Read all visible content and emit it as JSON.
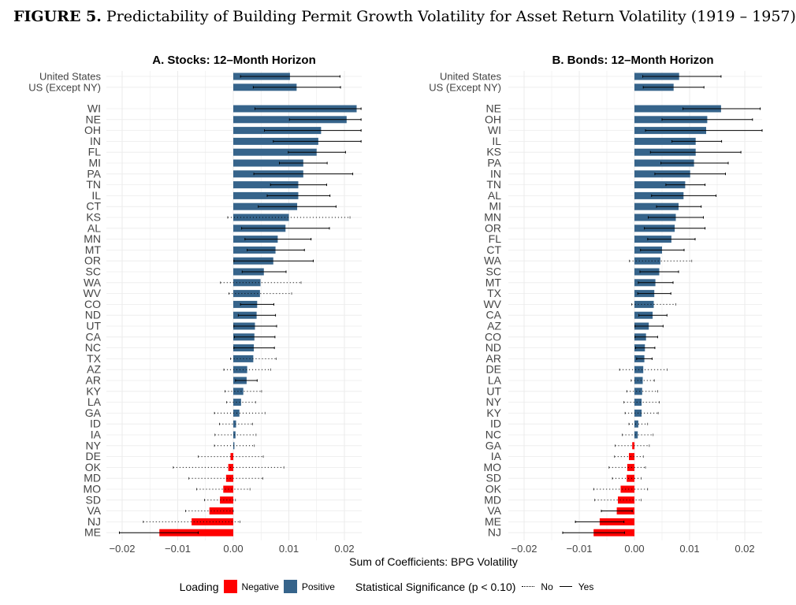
{
  "figure": {
    "label": "FIGURE 5.",
    "title": "Predictability of Building Permit Growth Volatility for Asset Return Volatility (1919 – 1957)"
  },
  "colors": {
    "negative": "#ff0000",
    "positive": "#36648b",
    "grid": "#ebebeb",
    "whisker": "#000000"
  },
  "chart_data": [
    {
      "type": "bar",
      "orientation": "horizontal",
      "title": "A. Stocks: 12–Month Horizon",
      "xlabel": "Sum of Coefficients: BPG Volatility",
      "xlim": [
        -0.023,
        0.023
      ],
      "xticks": [
        -0.02,
        -0.01,
        0.0,
        0.01,
        0.02
      ],
      "xtick_labels": [
        "−0.02",
        "−0.01",
        "0.00",
        "0.01",
        "0.02"
      ],
      "aggregates": [
        {
          "label": "United States",
          "value": 0.0102,
          "low": 0.0013,
          "high": 0.0192,
          "sig": true
        },
        {
          "label": "US (Except NY)",
          "value": 0.0114,
          "low": 0.0036,
          "high": 0.0193,
          "sig": true
        }
      ],
      "states": [
        {
          "label": "WI",
          "value": 0.0222,
          "low": 0.0039,
          "high": 0.023,
          "sig": true
        },
        {
          "label": "NE",
          "value": 0.0204,
          "low": 0.0101,
          "high": 0.023,
          "sig": true
        },
        {
          "label": "OH",
          "value": 0.0158,
          "low": 0.0056,
          "high": 0.023,
          "sig": true
        },
        {
          "label": "IN",
          "value": 0.0153,
          "low": 0.0072,
          "high": 0.023,
          "sig": true
        },
        {
          "label": "FL",
          "value": 0.015,
          "low": 0.0099,
          "high": 0.0202,
          "sig": true
        },
        {
          "label": "MI",
          "value": 0.0126,
          "low": 0.0083,
          "high": 0.0169,
          "sig": true
        },
        {
          "label": "PA",
          "value": 0.0126,
          "low": 0.0037,
          "high": 0.0215,
          "sig": true
        },
        {
          "label": "TN",
          "value": 0.0117,
          "low": 0.0067,
          "high": 0.0168,
          "sig": true
        },
        {
          "label": "IL",
          "value": 0.0117,
          "low": 0.0061,
          "high": 0.0174,
          "sig": true
        },
        {
          "label": "CT",
          "value": 0.0115,
          "low": 0.0045,
          "high": 0.0185,
          "sig": true
        },
        {
          "label": "KS",
          "value": 0.01,
          "low": -0.001,
          "high": 0.021,
          "sig": false
        },
        {
          "label": "AL",
          "value": 0.0094,
          "low": 0.0015,
          "high": 0.0173,
          "sig": true
        },
        {
          "label": "MN",
          "value": 0.008,
          "low": 0.0021,
          "high": 0.014,
          "sig": true
        },
        {
          "label": "MT",
          "value": 0.0076,
          "low": 0.0025,
          "high": 0.0128,
          "sig": true
        },
        {
          "label": "OR",
          "value": 0.0072,
          "low": 0.0001,
          "high": 0.0144,
          "sig": true
        },
        {
          "label": "SC",
          "value": 0.0055,
          "low": 0.0016,
          "high": 0.0095,
          "sig": true
        },
        {
          "label": "WA",
          "value": 0.0049,
          "low": -0.0023,
          "high": 0.0122,
          "sig": false
        },
        {
          "label": "WV",
          "value": 0.0048,
          "low": -0.0008,
          "high": 0.0105,
          "sig": false
        },
        {
          "label": "CO",
          "value": 0.0043,
          "low": 0.0013,
          "high": 0.0073,
          "sig": true
        },
        {
          "label": "ND",
          "value": 0.0042,
          "low": 0.0009,
          "high": 0.0076,
          "sig": true
        },
        {
          "label": "UT",
          "value": 0.0039,
          "low": 0.0001,
          "high": 0.0078,
          "sig": true
        },
        {
          "label": "CA",
          "value": 0.0038,
          "low": 0.0002,
          "high": 0.0075,
          "sig": true
        },
        {
          "label": "NC",
          "value": 0.0037,
          "low": 0.0001,
          "high": 0.0074,
          "sig": true
        },
        {
          "label": "TX",
          "value": 0.0036,
          "low": -0.0005,
          "high": 0.0077,
          "sig": false
        },
        {
          "label": "AZ",
          "value": 0.0025,
          "low": -0.0017,
          "high": 0.0067,
          "sig": false
        },
        {
          "label": "AR",
          "value": 0.0024,
          "low": 0.0004,
          "high": 0.0043,
          "sig": true
        },
        {
          "label": "KY",
          "value": 0.0018,
          "low": -0.0015,
          "high": 0.0051,
          "sig": false
        },
        {
          "label": "LA",
          "value": 0.0014,
          "low": -0.0012,
          "high": 0.004,
          "sig": false
        },
        {
          "label": "GA",
          "value": 0.0011,
          "low": -0.0034,
          "high": 0.0057,
          "sig": false
        },
        {
          "label": "ID",
          "value": 0.0005,
          "low": -0.0025,
          "high": 0.0035,
          "sig": false
        },
        {
          "label": "IA",
          "value": 0.0004,
          "low": -0.0033,
          "high": 0.0041,
          "sig": false
        },
        {
          "label": "NY",
          "value": 0.0002,
          "low": -0.0034,
          "high": 0.0038,
          "sig": false
        },
        {
          "label": "DE",
          "value": -0.0005,
          "low": -0.0063,
          "high": 0.0054,
          "sig": false
        },
        {
          "label": "OK",
          "value": -0.0009,
          "low": -0.0108,
          "high": 0.0091,
          "sig": false
        },
        {
          "label": "MD",
          "value": -0.0013,
          "low": -0.008,
          "high": 0.0053,
          "sig": false
        },
        {
          "label": "MO",
          "value": -0.0018,
          "low": -0.0066,
          "high": 0.003,
          "sig": false
        },
        {
          "label": "SD",
          "value": -0.0024,
          "low": -0.0052,
          "high": 0.0004,
          "sig": false
        },
        {
          "label": "VA",
          "value": -0.0043,
          "low": -0.0086,
          "high": 0.0,
          "sig": false
        },
        {
          "label": "NJ",
          "value": -0.0075,
          "low": -0.0162,
          "high": 0.0012,
          "sig": false
        },
        {
          "label": "ME",
          "value": -0.0133,
          "low": -0.0205,
          "high": -0.0063,
          "sig": true
        }
      ]
    },
    {
      "type": "bar",
      "orientation": "horizontal",
      "title": "B. Bonds: 12–Month Horizon",
      "xlabel": "",
      "xlim": [
        -0.0225,
        0.0235
      ],
      "xticks": [
        -0.02,
        -0.01,
        0.0,
        0.01,
        0.02
      ],
      "xtick_labels": [
        "−0.02",
        "−0.01",
        "0.00",
        "0.01",
        "0.02"
      ],
      "aggregates": [
        {
          "label": "United States",
          "value": 0.0081,
          "low": 0.0015,
          "high": 0.0157,
          "sig": true
        },
        {
          "label": "US (Except NY)",
          "value": 0.0071,
          "low": 0.0016,
          "high": 0.0126,
          "sig": true
        }
      ],
      "states": [
        {
          "label": "NE",
          "value": 0.0157,
          "low": 0.0088,
          "high": 0.0228,
          "sig": true
        },
        {
          "label": "OH",
          "value": 0.0132,
          "low": 0.005,
          "high": 0.0214,
          "sig": true
        },
        {
          "label": "WI",
          "value": 0.013,
          "low": 0.002,
          "high": 0.0235,
          "sig": true
        },
        {
          "label": "IL",
          "value": 0.0111,
          "low": 0.0068,
          "high": 0.0158,
          "sig": true
        },
        {
          "label": "KS",
          "value": 0.0111,
          "low": 0.0029,
          "high": 0.0193,
          "sig": true
        },
        {
          "label": "PA",
          "value": 0.0108,
          "low": 0.0048,
          "high": 0.017,
          "sig": true
        },
        {
          "label": "IN",
          "value": 0.0101,
          "low": 0.0037,
          "high": 0.0165,
          "sig": true
        },
        {
          "label": "TN",
          "value": 0.0092,
          "low": 0.0057,
          "high": 0.0128,
          "sig": true
        },
        {
          "label": "AL",
          "value": 0.0089,
          "low": 0.0031,
          "high": 0.0148,
          "sig": true
        },
        {
          "label": "MI",
          "value": 0.008,
          "low": 0.004,
          "high": 0.0121,
          "sig": true
        },
        {
          "label": "MN",
          "value": 0.0075,
          "low": 0.0025,
          "high": 0.0125,
          "sig": true
        },
        {
          "label": "OR",
          "value": 0.0073,
          "low": 0.0018,
          "high": 0.0128,
          "sig": true
        },
        {
          "label": "FL",
          "value": 0.0067,
          "low": 0.0024,
          "high": 0.011,
          "sig": true
        },
        {
          "label": "CT",
          "value": 0.005,
          "low": 0.0011,
          "high": 0.009,
          "sig": true
        },
        {
          "label": "WA",
          "value": 0.0047,
          "low": -0.0009,
          "high": 0.0104,
          "sig": false
        },
        {
          "label": "SC",
          "value": 0.0045,
          "low": 0.001,
          "high": 0.008,
          "sig": true
        },
        {
          "label": "MT",
          "value": 0.0038,
          "low": 0.0007,
          "high": 0.007,
          "sig": true
        },
        {
          "label": "TX",
          "value": 0.0036,
          "low": 0.0006,
          "high": 0.0066,
          "sig": true
        },
        {
          "label": "WV",
          "value": 0.0035,
          "low": -0.0005,
          "high": 0.0075,
          "sig": false
        },
        {
          "label": "CA",
          "value": 0.0033,
          "low": 0.0008,
          "high": 0.0059,
          "sig": true
        },
        {
          "label": "AZ",
          "value": 0.0026,
          "low": 0.0001,
          "high": 0.0052,
          "sig": true
        },
        {
          "label": "CO",
          "value": 0.0021,
          "low": 0.0001,
          "high": 0.0042,
          "sig": true
        },
        {
          "label": "ND",
          "value": 0.0019,
          "low": 0.0002,
          "high": 0.0037,
          "sig": true
        },
        {
          "label": "AR",
          "value": 0.0018,
          "low": 0.0004,
          "high": 0.0032,
          "sig": true
        },
        {
          "label": "DE",
          "value": 0.0016,
          "low": -0.0027,
          "high": 0.0059,
          "sig": false
        },
        {
          "label": "LA",
          "value": 0.0015,
          "low": -0.0006,
          "high": 0.0036,
          "sig": false
        },
        {
          "label": "UT",
          "value": 0.0014,
          "low": -0.0014,
          "high": 0.0042,
          "sig": false
        },
        {
          "label": "NY",
          "value": 0.0013,
          "low": -0.0019,
          "high": 0.0045,
          "sig": false
        },
        {
          "label": "KY",
          "value": 0.0013,
          "low": -0.0017,
          "high": 0.0043,
          "sig": false
        },
        {
          "label": "ID",
          "value": 0.0007,
          "low": -0.001,
          "high": 0.0024,
          "sig": false
        },
        {
          "label": "NC",
          "value": 0.0006,
          "low": -0.0022,
          "high": 0.0034,
          "sig": false
        },
        {
          "label": "GA",
          "value": -0.0004,
          "low": -0.0035,
          "high": 0.0027,
          "sig": false
        },
        {
          "label": "IA",
          "value": -0.001,
          "low": -0.0036,
          "high": 0.0016,
          "sig": false
        },
        {
          "label": "MO",
          "value": -0.0013,
          "low": -0.0046,
          "high": 0.002,
          "sig": false
        },
        {
          "label": "SD",
          "value": -0.0014,
          "low": -0.004,
          "high": 0.0012,
          "sig": false
        },
        {
          "label": "OK",
          "value": -0.0025,
          "low": -0.0074,
          "high": 0.0024,
          "sig": false
        },
        {
          "label": "MD",
          "value": -0.003,
          "low": -0.0072,
          "high": 0.0012,
          "sig": false
        },
        {
          "label": "VA",
          "value": -0.0032,
          "low": -0.006,
          "high": -0.0004,
          "sig": true
        },
        {
          "label": "ME",
          "value": -0.0063,
          "low": -0.0107,
          "high": -0.0019,
          "sig": true
        },
        {
          "label": "NJ",
          "value": -0.0074,
          "low": -0.013,
          "high": -0.0018,
          "sig": true
        }
      ]
    }
  ],
  "legend": {
    "loading_title": "Loading",
    "negative_label": "Negative",
    "positive_label": "Positive",
    "significance_title": "Statistical Significance (p < 0.10)",
    "no_label": "No",
    "yes_label": "Yes"
  }
}
